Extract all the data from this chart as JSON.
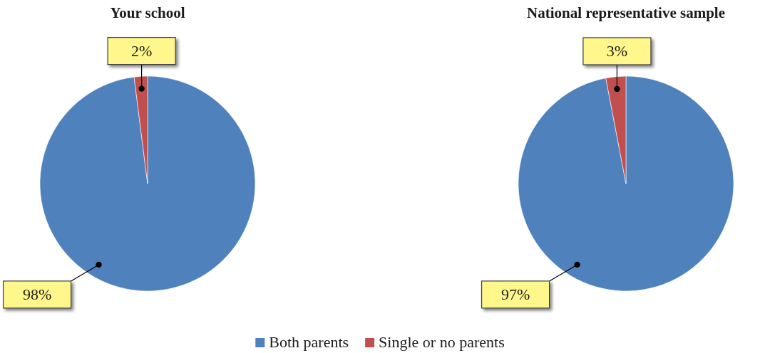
{
  "chart_data": [
    {
      "type": "pie",
      "title": "Your school",
      "categories": [
        "Both parents",
        "Single or no parents"
      ],
      "values": [
        98,
        2
      ],
      "colors": [
        "#4f81bd",
        "#c0504d"
      ],
      "value_labels": [
        "98%",
        "2%"
      ],
      "legend": "bottom"
    },
    {
      "type": "pie",
      "title": "National representative sample",
      "categories": [
        null,
        null
      ],
      "values": [
        97,
        3
      ],
      "colors": [
        "#4f81bd",
        "#c0504d"
      ],
      "value_labels": [
        "97%",
        "3%"
      ]
    }
  ]
}
